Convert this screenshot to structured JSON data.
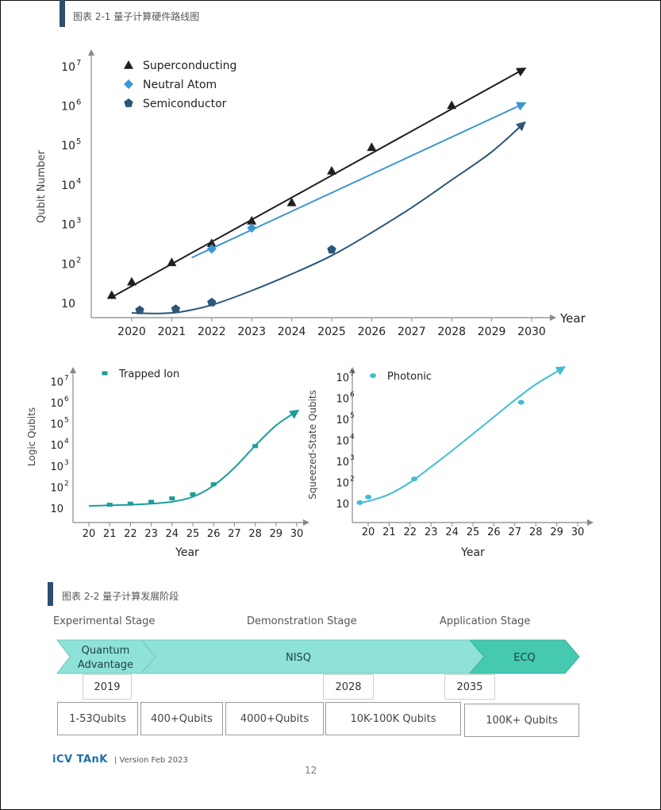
{
  "figures": {
    "fig1_title": "图表 2-1 量子计算硬件路线图",
    "fig2_title": "图表 2-2 量子计算发展阶段"
  },
  "chart_data": [
    {
      "type": "scatter",
      "title": "",
      "xlabel": "Year",
      "ylabel": "Qubit Number",
      "yscale": "log",
      "ylim": [
        10,
        10000000
      ],
      "x_ticks": [
        2020,
        2021,
        2022,
        2023,
        2024,
        2025,
        2026,
        2027,
        2028,
        2029,
        2030
      ],
      "y_tick_exponents": [
        1,
        2,
        3,
        4,
        5,
        6,
        7
      ],
      "y_tick_labels": [
        "10",
        "10",
        "10",
        "10",
        "10",
        "10",
        "10"
      ],
      "legend_position": "top-left",
      "series": [
        {
          "name": "Superconducting",
          "marker": "triangle",
          "color": "#1f1f1f",
          "points": [
            [
              2019.5,
              17
            ],
            [
              2020,
              37
            ],
            [
              2021,
              115
            ],
            [
              2022,
              350
            ],
            [
              2023,
              1300
            ],
            [
              2024,
              3800
            ],
            [
              2025,
              24000
            ],
            [
              2026,
              95000
            ],
            [
              2028,
              1100000
            ]
          ],
          "trend": [
            [
              2019.5,
              15
            ],
            [
              2029.8,
              9000000
            ]
          ]
        },
        {
          "name": "Neutral Atom",
          "marker": "diamond",
          "color": "#3c96d2",
          "points": [
            [
              2022,
              250
            ],
            [
              2023,
              850
            ]
          ],
          "trend": [
            [
              2021.5,
              150
            ],
            [
              2029.8,
              1200000
            ]
          ]
        },
        {
          "name": "Semiconductor",
          "marker": "pentagon",
          "color": "#2d5678",
          "points": [
            [
              2020.2,
              7
            ],
            [
              2021.1,
              7.5
            ],
            [
              2022,
              11
            ],
            [
              2025,
              240
            ]
          ],
          "trend": [
            [
              2020,
              6
            ],
            [
              2020.6,
              5.8
            ],
            [
              2021.2,
              6.3
            ],
            [
              2022,
              9.5
            ],
            [
              2023,
              22
            ],
            [
              2024,
              58
            ],
            [
              2025,
              170
            ],
            [
              2026,
              650
            ],
            [
              2027,
              2800
            ],
            [
              2028,
              14000
            ],
            [
              2029,
              72000
            ],
            [
              2029.8,
              380000
            ]
          ]
        }
      ]
    },
    {
      "type": "scatter",
      "title": "",
      "xlabel": "Year",
      "ylabel": "Logic Qubits",
      "yscale": "log",
      "ylim": [
        10,
        10000000
      ],
      "x_ticks": [
        20,
        21,
        22,
        23,
        24,
        25,
        26,
        27,
        28,
        29,
        30
      ],
      "y_tick_exponents": [
        1,
        2,
        3,
        4,
        5,
        6,
        7
      ],
      "y_tick_labels": [
        "10",
        "10",
        "10",
        "10",
        "10",
        "10",
        "10"
      ],
      "legend_position": "top-left",
      "series": [
        {
          "name": "Trapped Ion",
          "marker": "square",
          "color": "#1b9e9a",
          "points": [
            [
              21,
              16
            ],
            [
              22,
              18
            ],
            [
              23,
              22
            ],
            [
              24,
              32
            ],
            [
              25,
              50
            ],
            [
              26,
              150
            ],
            [
              28,
              9500
            ]
          ],
          "trend": [
            [
              20,
              14
            ],
            [
              21,
              15
            ],
            [
              22,
              16
            ],
            [
              23,
              18
            ],
            [
              24,
              22
            ],
            [
              25,
              38
            ],
            [
              26,
              130
            ],
            [
              27,
              900
            ],
            [
              28,
              10000
            ],
            [
              29,
              90000
            ],
            [
              30,
              420000
            ]
          ]
        }
      ]
    },
    {
      "type": "scatter",
      "title": "",
      "xlabel": "Year",
      "ylabel": "Squeezed-State Qubits",
      "yscale": "log",
      "ylim": [
        10,
        10000000
      ],
      "x_ticks": [
        20,
        21,
        22,
        23,
        24,
        25,
        26,
        27,
        28,
        29,
        30
      ],
      "y_tick_exponents": [
        1,
        2,
        3,
        4,
        5,
        6,
        7
      ],
      "y_tick_labels": [
        "10",
        "10",
        "10",
        "10",
        "10",
        "10",
        "10"
      ],
      "legend_position": "top-left",
      "series": [
        {
          "name": "Photonic",
          "marker": "circle",
          "color": "#40bdd3",
          "points": [
            [
              19.6,
              12
            ],
            [
              20,
              22
            ],
            [
              22.2,
              160
            ],
            [
              27.3,
              700000
            ]
          ],
          "trend": [
            [
              19.6,
              12
            ],
            [
              20,
              14
            ],
            [
              21,
              30
            ],
            [
              22,
              110
            ],
            [
              23,
              600
            ],
            [
              24,
              3500
            ],
            [
              25,
              22000
            ],
            [
              26,
              140000
            ],
            [
              27,
              900000
            ],
            [
              28,
              5000000
            ],
            [
              29.3,
              30000000
            ]
          ]
        }
      ]
    }
  ],
  "stages": {
    "labels": [
      "Experimental Stage",
      "Demonstration Stage",
      "Application Stage"
    ],
    "arrows": [
      {
        "label": "Quantum\nAdvantage",
        "color": "#8ee2d8"
      },
      {
        "label": "NISQ",
        "color": "#8ee2d8"
      },
      {
        "label": "ECQ",
        "color": "#45c9b0"
      }
    ],
    "years": [
      "2019",
      "2028",
      "2035"
    ],
    "qubits": [
      "1-53Qubits",
      "400+Qubits",
      "4000+Qubits",
      "10K-100K Qubits",
      "100K+ Qubits"
    ]
  },
  "footer": {
    "logo": "iCV TAnK",
    "version": "| Version Feb 2023",
    "page": "12"
  }
}
